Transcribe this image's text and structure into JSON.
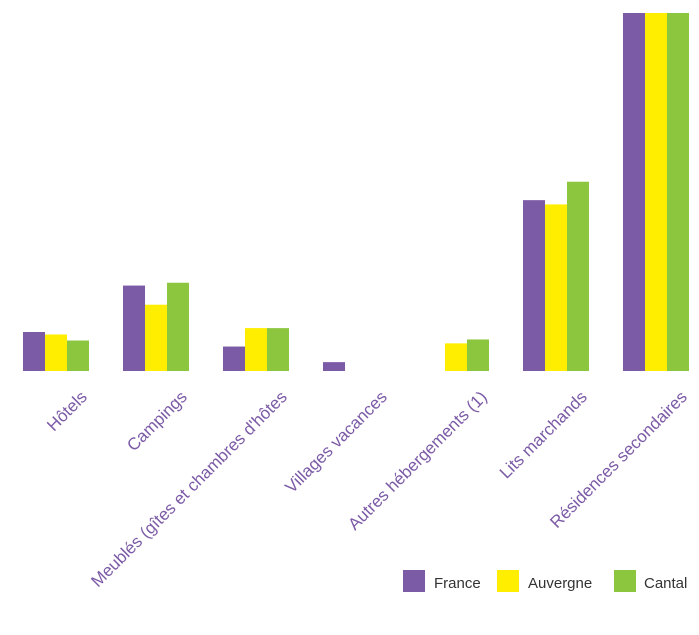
{
  "chart_data": {
    "type": "bar",
    "title": "",
    "xlabel": "",
    "ylabel": "",
    "categories": [
      "Hôtels",
      "Campings",
      "Meublés (gîtes et chambres d'hôtes",
      "Villages vacances",
      "Autres hébergements (1)",
      "Lits marchands",
      "Résidences secondaires"
    ],
    "series": [
      {
        "name": "France",
        "color": "#7b5aa6",
        "values": [
          11,
          24.1,
          6.9,
          2.5,
          0,
          48.2,
          101
        ]
      },
      {
        "name": "Auvergne",
        "color": "#ffee00",
        "values": [
          10.3,
          18.7,
          12.1,
          0,
          7.8,
          47,
          101
        ]
      },
      {
        "name": "Cantal",
        "color": "#8cc63f",
        "values": [
          8.6,
          24.9,
          12.1,
          0,
          8.9,
          53.4,
          101
        ]
      }
    ],
    "ylim": [
      0,
      101
    ],
    "grid": false,
    "legend": "bottom-right"
  }
}
